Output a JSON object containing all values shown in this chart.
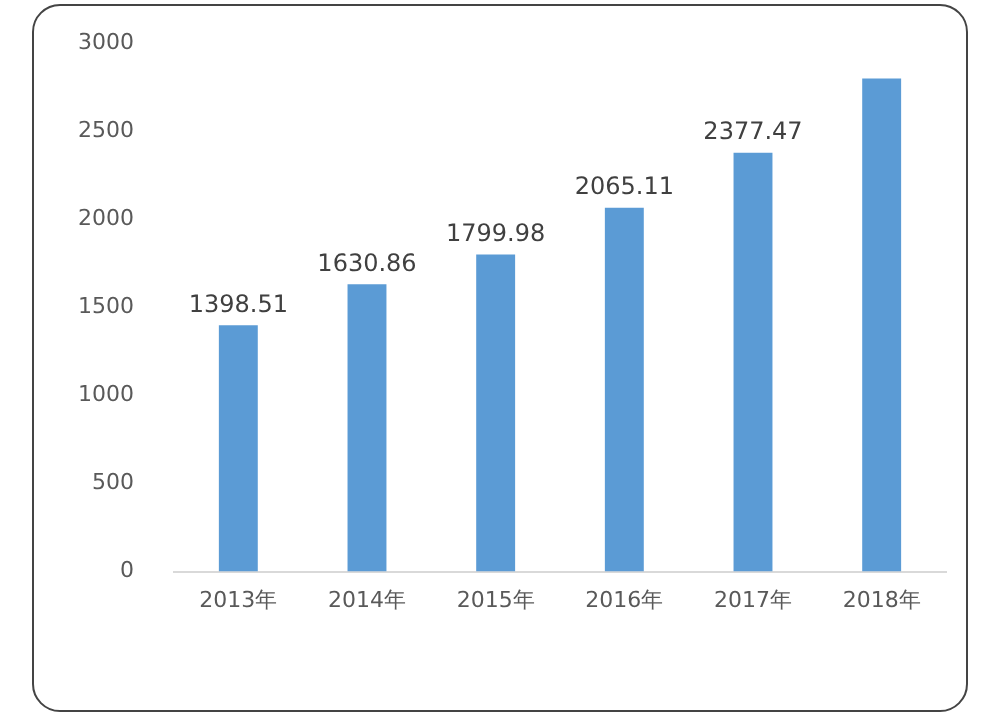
{
  "chart_data": {
    "type": "bar",
    "categories": [
      "2013年",
      "2014年",
      "2015年",
      "2016年",
      "2017年",
      "2018年"
    ],
    "values": [
      1398.51,
      1630.86,
      1799.98,
      2065.11,
      2377.47,
      2800
    ],
    "value_labels": [
      "1398.51",
      "1630.86",
      "1799.98",
      "2065.11",
      "2377.47",
      null
    ],
    "color": "#5b9bd5",
    "ylim": [
      0,
      3000
    ],
    "yticks": [
      0,
      500,
      1000,
      1500,
      2000,
      2500,
      3000
    ],
    "grid": false,
    "legend": false
  }
}
